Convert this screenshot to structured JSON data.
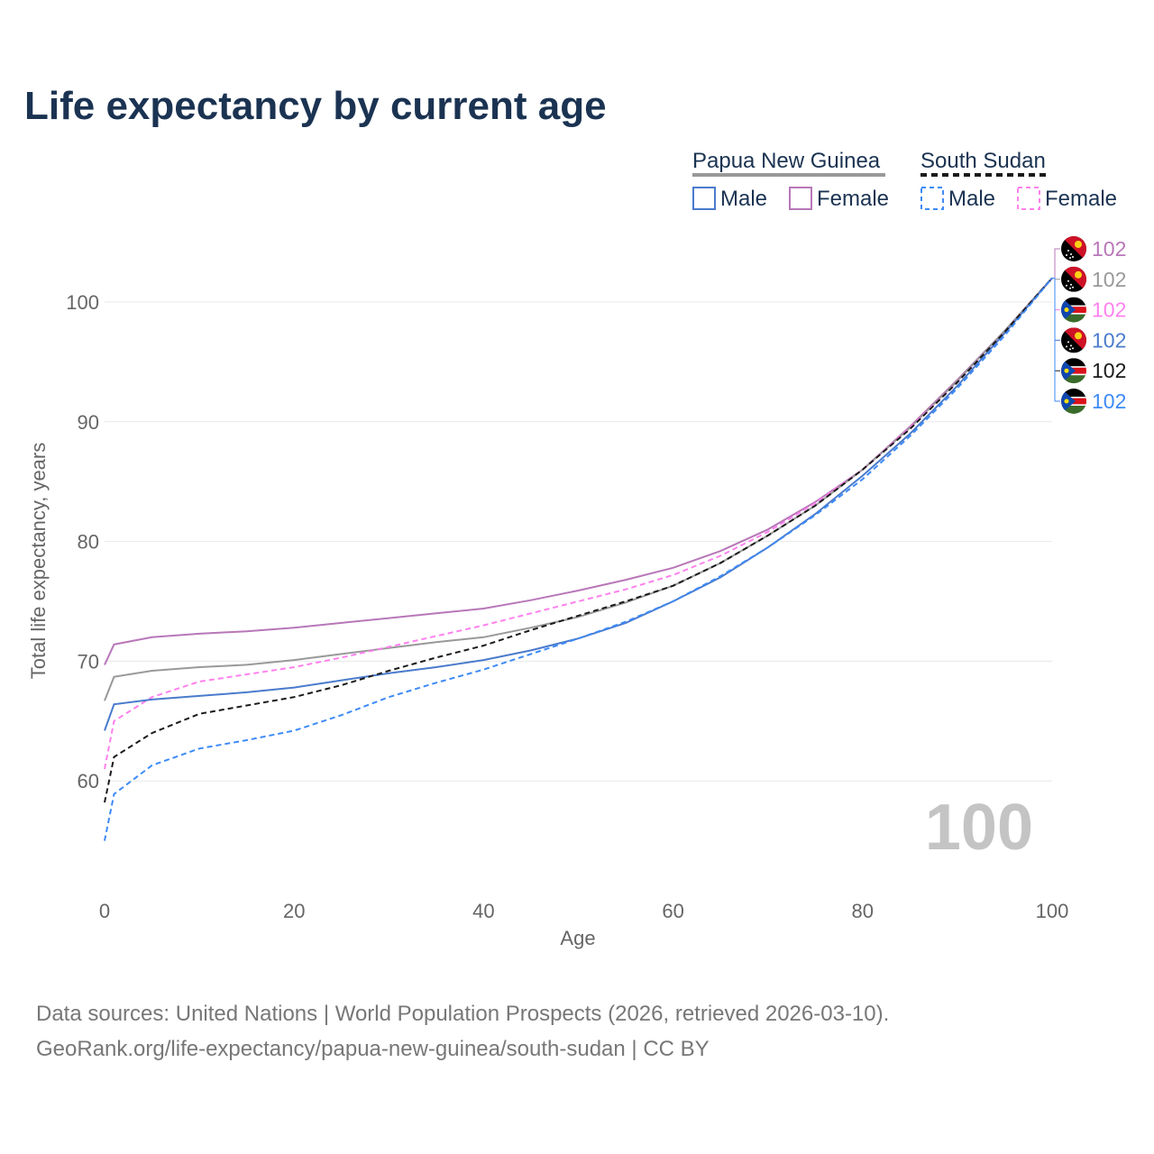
{
  "chart_data": {
    "type": "line",
    "title": "Life expectancy by current age",
    "xlabel": "Age",
    "ylabel": "Total life expectancy, years",
    "xlim": [
      0,
      100
    ],
    "ylim": [
      50,
      105
    ],
    "xticks": [
      0,
      20,
      40,
      60,
      80,
      100
    ],
    "yticks": [
      60,
      70,
      80,
      90,
      100
    ],
    "grid": true,
    "current_age_label": "100",
    "x": [
      0,
      1,
      5,
      10,
      15,
      20,
      25,
      30,
      35,
      40,
      45,
      50,
      55,
      60,
      65,
      70,
      75,
      80,
      85,
      90,
      95,
      100
    ],
    "series": [
      {
        "name": "Papua New Guinea Female",
        "country": "Papua New Guinea",
        "flag": "png",
        "color": "#b877b8",
        "dash": false,
        "end_label": "102",
        "values": [
          69.7,
          71.4,
          72.0,
          72.3,
          72.5,
          72.8,
          73.2,
          73.6,
          74.0,
          74.4,
          75.1,
          75.9,
          76.8,
          77.8,
          79.2,
          81.0,
          83.3,
          86.0,
          89.6,
          93.5,
          97.6,
          102
        ]
      },
      {
        "name": "Papua New Guinea",
        "country": "Papua New Guinea",
        "flag": "png",
        "color": "#999999",
        "dash": false,
        "end_label": "102",
        "values": [
          66.7,
          68.7,
          69.2,
          69.5,
          69.7,
          70.1,
          70.6,
          71.1,
          71.6,
          72.0,
          72.8,
          73.7,
          74.9,
          76.3,
          78.2,
          80.5,
          83.0,
          86.0,
          89.5,
          93.4,
          97.6,
          102
        ]
      },
      {
        "name": "South Sudan Female",
        "country": "South Sudan",
        "flag": "ssd",
        "color": "#ff80ee",
        "dash": true,
        "end_label": "102",
        "values": [
          61.0,
          65.0,
          67.0,
          68.3,
          68.9,
          69.5,
          70.3,
          71.2,
          72.1,
          73.0,
          74.0,
          75.0,
          76.0,
          77.2,
          78.8,
          80.8,
          83.2,
          86.0,
          89.5,
          93.3,
          97.5,
          102
        ]
      },
      {
        "name": "Papua New Guinea Male",
        "country": "Papua New Guinea",
        "flag": "png",
        "color": "#4a7bcc",
        "dash": false,
        "end_label": "102",
        "values": [
          64.2,
          66.4,
          66.8,
          67.1,
          67.4,
          67.8,
          68.4,
          69.0,
          69.5,
          70.1,
          70.9,
          71.9,
          73.2,
          75.0,
          77.0,
          79.5,
          82.3,
          85.5,
          89.0,
          93.0,
          97.4,
          102
        ]
      },
      {
        "name": "South Sudan",
        "country": "South Sudan",
        "flag": "ssd",
        "color": "#1a1a1a",
        "dash": true,
        "end_label": "102",
        "values": [
          58.2,
          62.0,
          64.0,
          65.6,
          66.3,
          67.0,
          68.0,
          69.2,
          70.3,
          71.3,
          72.6,
          73.8,
          75.0,
          76.3,
          78.2,
          80.5,
          83.0,
          86.0,
          89.4,
          93.3,
          97.5,
          102
        ]
      },
      {
        "name": "South Sudan Male",
        "country": "South Sudan",
        "flag": "ssd",
        "color": "#3d8af7",
        "dash": true,
        "end_label": "102",
        "values": [
          55.0,
          58.9,
          61.3,
          62.7,
          63.4,
          64.2,
          65.5,
          67.0,
          68.2,
          69.3,
          70.6,
          71.9,
          73.3,
          75.0,
          77.1,
          79.5,
          82.2,
          85.2,
          88.8,
          92.8,
          97.2,
          102
        ]
      }
    ]
  },
  "legend": {
    "groups": [
      {
        "country": "Papua New Guinea",
        "line_color": "#999999",
        "dash": false,
        "items": [
          {
            "label": "Male",
            "color": "#4a7bcc"
          },
          {
            "label": "Female",
            "color": "#b877b8"
          }
        ]
      },
      {
        "country": "South Sudan",
        "line_color": "#1a1a1a",
        "dash": true,
        "items": [
          {
            "label": "Male",
            "color": "#3d8af7"
          },
          {
            "label": "Female",
            "color": "#ff80ee"
          }
        ]
      }
    ]
  },
  "footer": {
    "line1": "Data sources: United Nations | World Population Prospects (2026, retrieved 2026-03-10).",
    "line2": "GeoRank.org/life-expectancy/papua-new-guinea/south-sudan | CC BY"
  }
}
